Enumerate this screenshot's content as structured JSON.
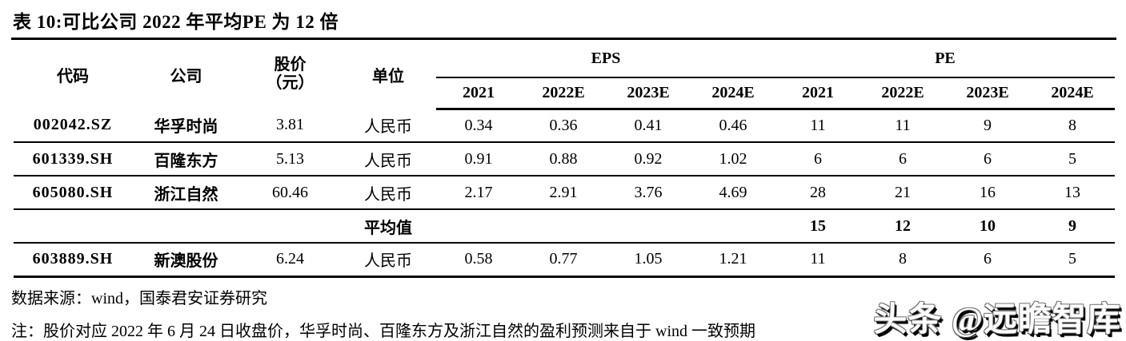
{
  "title": "表 10:可比公司 2022 年平均PE 为 12 倍",
  "table": {
    "headers": {
      "code": "代码",
      "company": "公司",
      "price_line1": "股价",
      "price_line2": "（元）",
      "unit": "单位",
      "eps_group": "EPS",
      "pe_group": "PE",
      "eps_years": [
        "2021",
        "2022E",
        "2023E",
        "2024E"
      ],
      "pe_years": [
        "2021",
        "2022E",
        "2023E",
        "2024E"
      ]
    },
    "rows": [
      {
        "code": "002042.SZ",
        "company": "华孚时尚",
        "price": "3.81",
        "unit": "人民币",
        "eps": [
          "0.34",
          "0.36",
          "0.41",
          "0.46"
        ],
        "pe": [
          "11",
          "11",
          "9",
          "8"
        ]
      },
      {
        "code": "601339.SH",
        "company": "百隆东方",
        "price": "5.13",
        "unit": "人民币",
        "eps": [
          "0.91",
          "0.88",
          "0.92",
          "1.02"
        ],
        "pe": [
          "6",
          "6",
          "6",
          "5"
        ]
      },
      {
        "code": "605080.SH",
        "company": "浙江自然",
        "price": "60.46",
        "unit": "人民币",
        "eps": [
          "2.17",
          "2.91",
          "3.76",
          "4.69"
        ],
        "pe": [
          "28",
          "21",
          "16",
          "13"
        ]
      }
    ],
    "average_row": {
      "label": "平均值",
      "pe": [
        "15",
        "12",
        "10",
        "9"
      ]
    },
    "extra_row": {
      "code": "603889.SH",
      "company": "新澳股份",
      "price": "6.24",
      "unit": "人民币",
      "eps": [
        "0.58",
        "0.77",
        "1.05",
        "1.21"
      ],
      "pe": [
        "11",
        "8",
        "6",
        "5"
      ]
    }
  },
  "footer": {
    "source": "数据来源：wind，国泰君安证券研究",
    "note": "注：股价对应 2022 年 6 月 24 日收盘价，华孚时尚、百隆东方及浙江自然的盈利预测来自于 wind 一致预期"
  },
  "watermark": "头条 @远瞻智库",
  "colors": {
    "text": "#000000",
    "line": "#000000",
    "background": "#ffffff"
  }
}
